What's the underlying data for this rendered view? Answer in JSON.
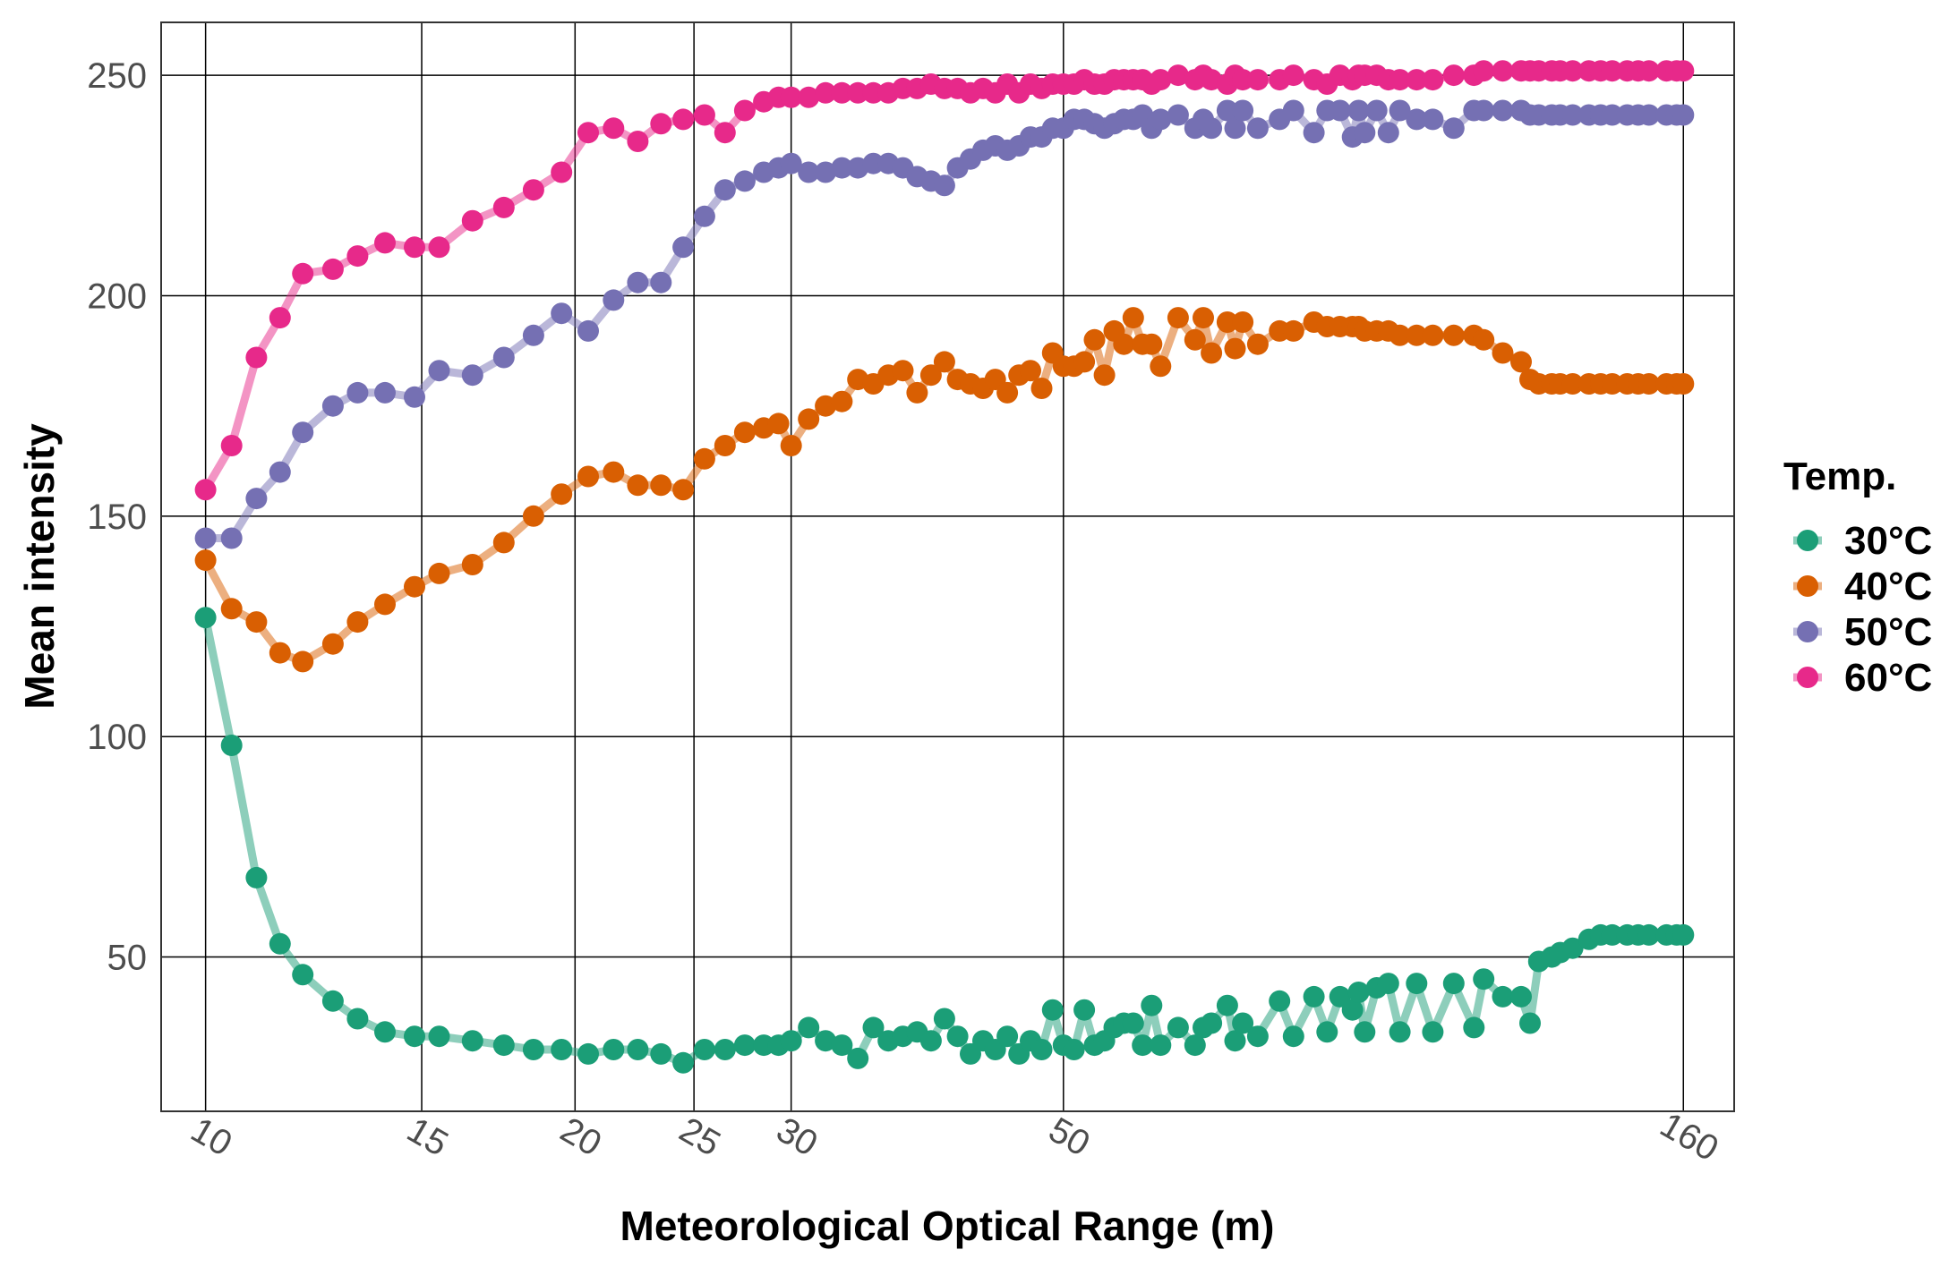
{
  "chart_data": {
    "type": "line",
    "title": "",
    "xlabel": "Meteorological Optical Range (m)",
    "ylabel": "Mean intensity",
    "xscale": "log",
    "xlim": [
      9.2,
      176
    ],
    "ylim": [
      15,
      262
    ],
    "x_ticks": [
      10,
      15,
      20,
      25,
      30,
      50,
      160
    ],
    "x_tick_labels": [
      "10",
      "15",
      "20",
      "25",
      "30",
      "50",
      "160"
    ],
    "y_ticks": [
      50,
      100,
      150,
      200,
      250
    ],
    "y_tick_labels": [
      "50",
      "100",
      "150",
      "200",
      "250"
    ],
    "grid": true,
    "legend": {
      "title": "Temp.",
      "position": "right"
    },
    "series": [
      {
        "name": "30°C",
        "color": "#1b9e77",
        "x": [
          10,
          10.5,
          11,
          11.5,
          12,
          12.7,
          13.3,
          14,
          14.8,
          15.5,
          16.5,
          17.5,
          18.5,
          19.5,
          20.5,
          21.5,
          22.5,
          23.5,
          24.5,
          25.5,
          26.5,
          27.5,
          28.5,
          29.3,
          30,
          31,
          32,
          33,
          34,
          35,
          36,
          37,
          38,
          39,
          40,
          41,
          42,
          43,
          44,
          45,
          46,
          47,
          48,
          49,
          50,
          51,
          52,
          53,
          54,
          55,
          56,
          57,
          58,
          59,
          60,
          62,
          64,
          65,
          66,
          68,
          69,
          70,
          72,
          75,
          77,
          80,
          82,
          84,
          86,
          87,
          88,
          90,
          92,
          94,
          97,
          100,
          104,
          108,
          110,
          114,
          118,
          120,
          122,
          125,
          127,
          130,
          134,
          137,
          140,
          144,
          147,
          150,
          155,
          158,
          160
        ],
        "y": [
          127,
          98,
          68,
          53,
          46,
          40,
          36,
          33,
          32,
          32,
          31,
          30,
          29,
          29,
          28,
          29,
          29,
          28,
          26,
          29,
          29,
          30,
          30,
          30,
          31,
          34,
          31,
          30,
          27,
          34,
          31,
          32,
          33,
          31,
          36,
          32,
          28,
          31,
          29,
          32,
          28,
          31,
          29,
          38,
          30,
          29,
          38,
          30,
          31,
          34,
          35,
          35,
          30,
          39,
          30,
          34,
          30,
          34,
          35,
          39,
          31,
          35,
          32,
          40,
          32,
          41,
          33,
          41,
          38,
          42,
          33,
          43,
          44,
          33,
          44,
          33,
          44,
          34,
          45,
          41,
          41,
          35,
          49,
          50,
          51,
          52,
          54,
          55,
          55,
          55,
          55,
          55,
          55,
          55,
          55
        ]
      },
      {
        "name": "40°C",
        "color": "#d95f02",
        "x": [
          10,
          10.5,
          11,
          11.5,
          12,
          12.7,
          13.3,
          14,
          14.8,
          15.5,
          16.5,
          17.5,
          18.5,
          19.5,
          20.5,
          21.5,
          22.5,
          23.5,
          24.5,
          25.5,
          26.5,
          27.5,
          28.5,
          29.3,
          30,
          31,
          32,
          33,
          34,
          35,
          36,
          37,
          38,
          39,
          40,
          41,
          42,
          43,
          44,
          45,
          46,
          47,
          48,
          49,
          50,
          51,
          52,
          53,
          54,
          55,
          56,
          57,
          58,
          59,
          60,
          62,
          64,
          65,
          66,
          68,
          69,
          70,
          72,
          75,
          77,
          80,
          82,
          84,
          86,
          87,
          88,
          90,
          92,
          94,
          97,
          100,
          104,
          108,
          110,
          114,
          118,
          120,
          122,
          125,
          127,
          130,
          134,
          137,
          140,
          144,
          147,
          150,
          155,
          158,
          160
        ],
        "y": [
          140,
          129,
          126,
          119,
          117,
          121,
          126,
          130,
          134,
          137,
          139,
          144,
          150,
          155,
          159,
          160,
          157,
          157,
          156,
          163,
          166,
          169,
          170,
          171,
          166,
          172,
          175,
          176,
          181,
          180,
          182,
          183,
          178,
          182,
          185,
          181,
          180,
          179,
          181,
          178,
          182,
          183,
          179,
          187,
          184,
          184,
          185,
          190,
          182,
          192,
          189,
          195,
          189,
          189,
          184,
          195,
          190,
          195,
          187,
          194,
          188,
          194,
          189,
          192,
          192,
          194,
          193,
          193,
          193,
          193,
          192,
          192,
          192,
          191,
          191,
          191,
          191,
          191,
          190,
          187,
          185,
          181,
          180,
          180,
          180,
          180,
          180,
          180,
          180,
          180,
          180,
          180,
          180,
          180,
          180
        ]
      },
      {
        "name": "50°C",
        "color": "#7570b3",
        "x": [
          10,
          10.5,
          11,
          11.5,
          12,
          12.7,
          13.3,
          14,
          14.8,
          15.5,
          16.5,
          17.5,
          18.5,
          19.5,
          20.5,
          21.5,
          22.5,
          23.5,
          24.5,
          25.5,
          26.5,
          27.5,
          28.5,
          29.3,
          30,
          31,
          32,
          33,
          34,
          35,
          36,
          37,
          38,
          39,
          40,
          41,
          42,
          43,
          44,
          45,
          46,
          47,
          48,
          49,
          50,
          51,
          52,
          53,
          54,
          55,
          56,
          57,
          58,
          59,
          60,
          62,
          64,
          65,
          66,
          68,
          69,
          70,
          72,
          75,
          77,
          80,
          82,
          84,
          86,
          87,
          88,
          90,
          92,
          94,
          97,
          100,
          104,
          108,
          110,
          114,
          118,
          120,
          122,
          125,
          127,
          130,
          134,
          137,
          140,
          144,
          147,
          150,
          155,
          158,
          160
        ],
        "y": [
          145,
          145,
          154,
          160,
          169,
          175,
          178,
          178,
          177,
          183,
          182,
          186,
          191,
          196,
          192,
          199,
          203,
          203,
          211,
          218,
          224,
          226,
          228,
          229,
          230,
          228,
          228,
          229,
          229,
          230,
          230,
          229,
          227,
          226,
          225,
          229,
          231,
          233,
          234,
          233,
          234,
          236,
          236,
          238,
          238,
          240,
          240,
          239,
          238,
          239,
          240,
          240,
          241,
          238,
          240,
          241,
          238,
          240,
          238,
          242,
          238,
          242,
          238,
          240,
          242,
          237,
          242,
          242,
          236,
          242,
          237,
          242,
          237,
          242,
          240,
          240,
          238,
          242,
          242,
          242,
          242,
          241,
          241,
          241,
          241,
          241,
          241,
          241,
          241,
          241,
          241,
          241,
          241,
          241,
          241
        ]
      },
      {
        "name": "60°C",
        "color": "#e7298a",
        "x": [
          10,
          10.5,
          11,
          11.5,
          12,
          12.7,
          13.3,
          14,
          14.8,
          15.5,
          16.5,
          17.5,
          18.5,
          19.5,
          20.5,
          21.5,
          22.5,
          23.5,
          24.5,
          25.5,
          26.5,
          27.5,
          28.5,
          29.3,
          30,
          31,
          32,
          33,
          34,
          35,
          36,
          37,
          38,
          39,
          40,
          41,
          42,
          43,
          44,
          45,
          46,
          47,
          48,
          49,
          50,
          51,
          52,
          53,
          54,
          55,
          56,
          57,
          58,
          59,
          60,
          62,
          64,
          65,
          66,
          68,
          69,
          70,
          72,
          75,
          77,
          80,
          82,
          84,
          86,
          87,
          88,
          90,
          92,
          94,
          97,
          100,
          104,
          108,
          110,
          114,
          118,
          120,
          122,
          125,
          127,
          130,
          134,
          137,
          140,
          144,
          147,
          150,
          155,
          158,
          160
        ],
        "y": [
          156,
          166,
          186,
          195,
          205,
          206,
          209,
          212,
          211,
          211,
          217,
          220,
          224,
          228,
          237,
          238,
          235,
          239,
          240,
          241,
          237,
          242,
          244,
          245,
          245,
          245,
          246,
          246,
          246,
          246,
          246,
          247,
          247,
          248,
          247,
          247,
          246,
          247,
          246,
          248,
          246,
          248,
          247,
          248,
          248,
          248,
          249,
          248,
          248,
          249,
          249,
          249,
          249,
          248,
          249,
          250,
          249,
          250,
          249,
          248,
          250,
          249,
          249,
          249,
          250,
          249,
          248,
          250,
          249,
          250,
          250,
          250,
          249,
          249,
          249,
          249,
          250,
          250,
          251,
          251,
          251,
          251,
          251,
          251,
          251,
          251,
          251,
          251,
          251,
          251,
          251,
          251,
          251,
          251,
          251
        ]
      }
    ]
  }
}
